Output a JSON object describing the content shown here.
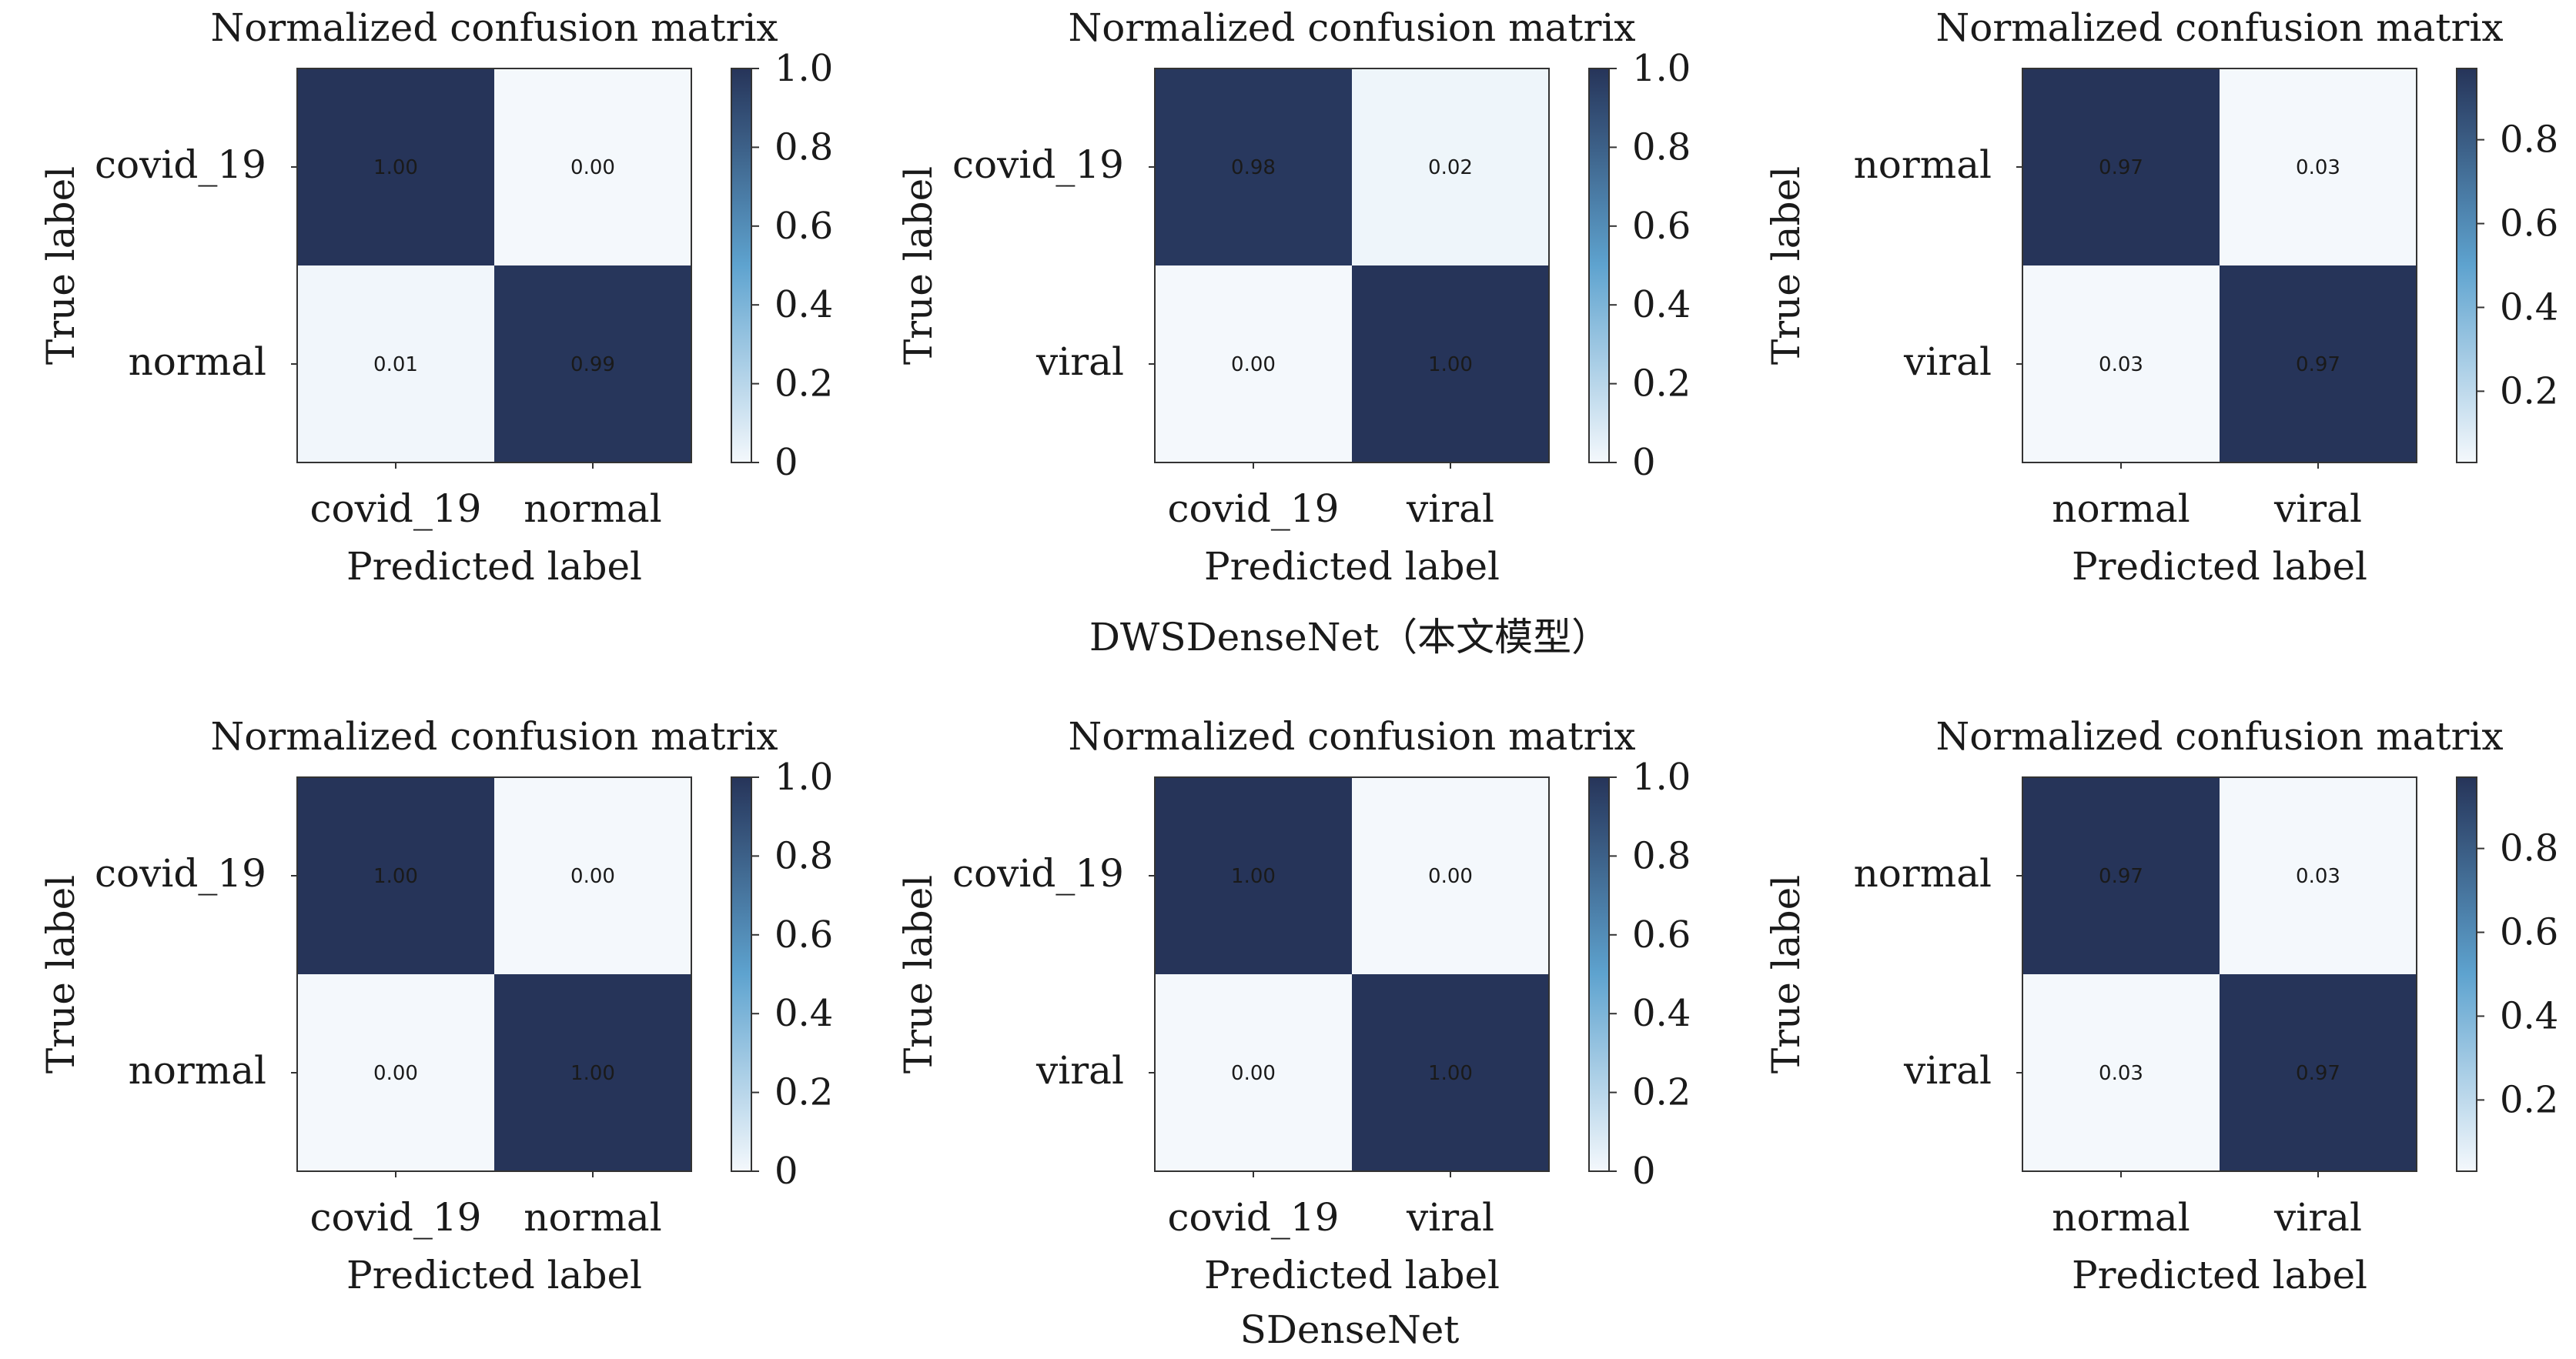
{
  "colors": {
    "cmap_low": "#f4f8fc",
    "cmap_mid": "#5ea3cf",
    "cmap_high": "#263459",
    "text_dark": "#1a1a1a",
    "text_light": "#d9e4f2"
  },
  "captions": [
    "DWSDenseNet（本文模型）",
    "SDenseNet"
  ],
  "chart_data": [
    {
      "type": "heatmap",
      "title": "Normalized confusion matrix",
      "xlabel": "Predicted label",
      "ylabel": "True label",
      "labels": [
        "covid_19",
        "normal"
      ],
      "values": [
        [
          1.0,
          0.0
        ],
        [
          0.01,
          0.99
        ]
      ],
      "colorbar": {
        "range": [
          0,
          1
        ],
        "ticks": [
          0,
          0.2,
          0.4,
          0.6,
          0.8,
          1.0
        ],
        "tick_labels": [
          "0",
          "0.2",
          "0.4",
          "0.6",
          "0.8",
          "1.0"
        ]
      }
    },
    {
      "type": "heatmap",
      "title": "Normalized confusion matrix",
      "xlabel": "Predicted label",
      "ylabel": "True label",
      "labels": [
        "covid_19",
        "viral"
      ],
      "values": [
        [
          0.98,
          0.02
        ],
        [
          0.0,
          1.0
        ]
      ],
      "colorbar": {
        "range": [
          0,
          1
        ],
        "ticks": [
          0,
          0.2,
          0.4,
          0.6,
          0.8,
          1.0
        ],
        "tick_labels": [
          "0",
          "0.2",
          "0.4",
          "0.6",
          "0.8",
          "1.0"
        ]
      }
    },
    {
      "type": "heatmap",
      "title": "Normalized confusion matrix",
      "xlabel": "Predicted label",
      "ylabel": "True label",
      "labels": [
        "normal",
        "viral"
      ],
      "values": [
        [
          0.97,
          0.03
        ],
        [
          0.03,
          0.97
        ]
      ],
      "colorbar": {
        "range": [
          0.03,
          0.97
        ],
        "ticks": [
          0.2,
          0.4,
          0.6,
          0.8
        ],
        "tick_labels": [
          "0.2",
          "0.4",
          "0.6",
          "0.8"
        ]
      }
    },
    {
      "type": "heatmap",
      "title": "Normalized confusion matrix",
      "xlabel": "Predicted label",
      "ylabel": "True label",
      "labels": [
        "covid_19",
        "normal"
      ],
      "values": [
        [
          1.0,
          0.0
        ],
        [
          0.0,
          1.0
        ]
      ],
      "colorbar": {
        "range": [
          0,
          1
        ],
        "ticks": [
          0,
          0.2,
          0.4,
          0.6,
          0.8,
          1.0
        ],
        "tick_labels": [
          "0",
          "0.2",
          "0.4",
          "0.6",
          "0.8",
          "1.0"
        ]
      }
    },
    {
      "type": "heatmap",
      "title": "Normalized confusion matrix",
      "xlabel": "Predicted label",
      "ylabel": "True label",
      "labels": [
        "covid_19",
        "viral"
      ],
      "values": [
        [
          1.0,
          0.0
        ],
        [
          0.0,
          1.0
        ]
      ],
      "colorbar": {
        "range": [
          0,
          1
        ],
        "ticks": [
          0,
          0.2,
          0.4,
          0.6,
          0.8,
          1.0
        ],
        "tick_labels": [
          "0",
          "0.2",
          "0.4",
          "0.6",
          "0.8",
          "1.0"
        ]
      }
    },
    {
      "type": "heatmap",
      "title": "Normalized confusion matrix",
      "xlabel": "Predicted label",
      "ylabel": "True label",
      "labels": [
        "normal",
        "viral"
      ],
      "values": [
        [
          0.97,
          0.03
        ],
        [
          0.03,
          0.97
        ]
      ],
      "colorbar": {
        "range": [
          0.03,
          0.97
        ],
        "ticks": [
          0.2,
          0.4,
          0.6,
          0.8
        ],
        "tick_labels": [
          "0.2",
          "0.4",
          "0.6",
          "0.8"
        ]
      }
    }
  ]
}
